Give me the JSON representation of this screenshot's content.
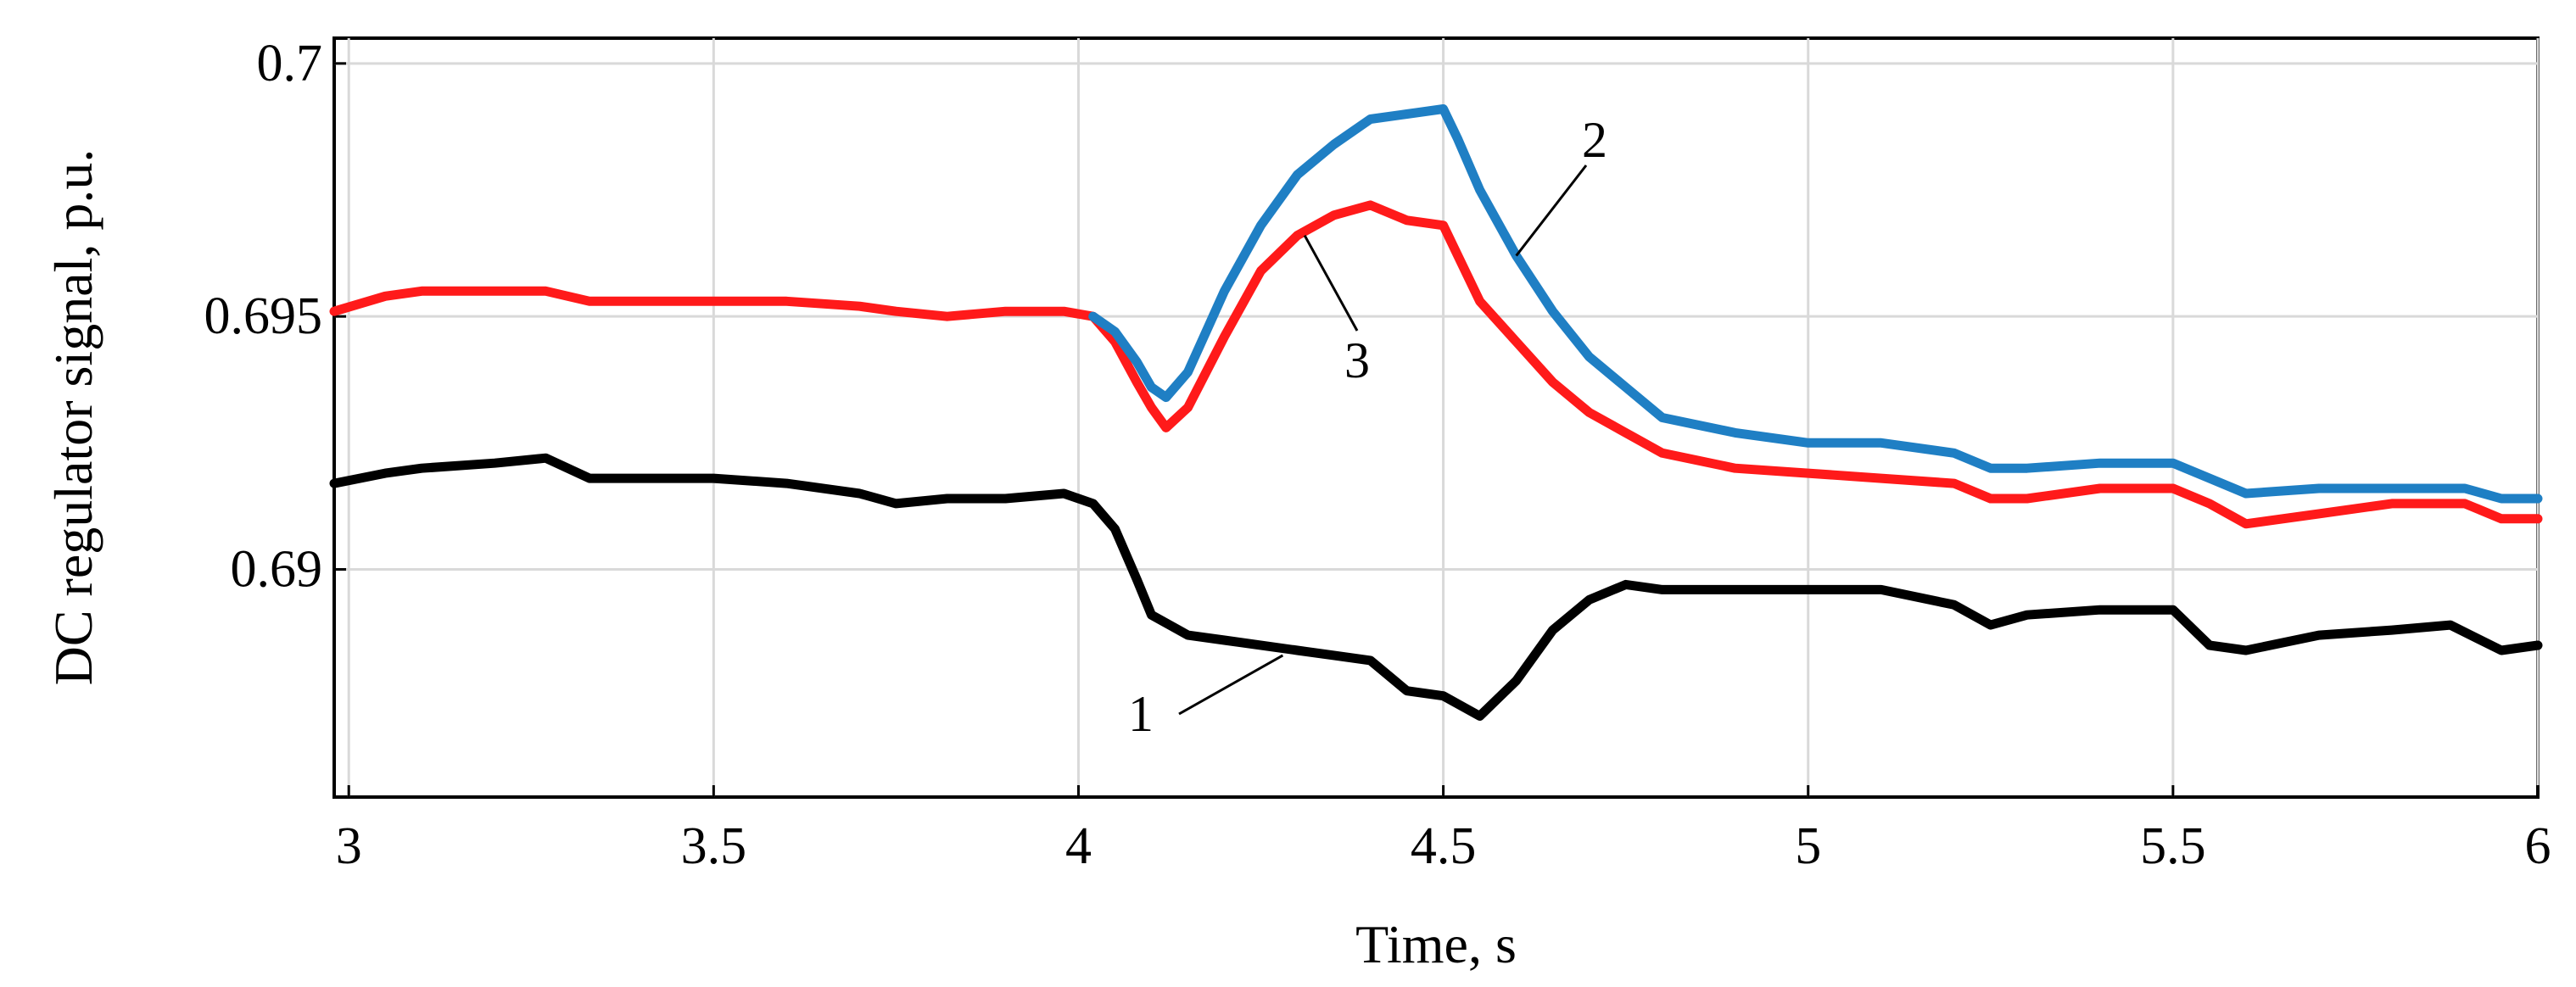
{
  "chart_data": {
    "type": "line",
    "xlabel": "Time, s",
    "ylabel": "DC regulator signal, p.u.",
    "xlim": [
      2.98,
      6.0
    ],
    "ylim": [
      0.6855,
      0.7005
    ],
    "xticks": [
      "3",
      "3.5",
      "4",
      "4.5",
      "5",
      "5.5",
      "6"
    ],
    "yticks": [
      "0.69",
      "0.695",
      "0.7"
    ],
    "grid": true,
    "colors": {
      "1": "#000000",
      "2": "#1f7fc4",
      "3": "#ff1a1a"
    },
    "series": [
      {
        "name": "1",
        "x": [
          2.98,
          3.05,
          3.1,
          3.2,
          3.27,
          3.33,
          3.4,
          3.5,
          3.6,
          3.7,
          3.75,
          3.82,
          3.9,
          3.98,
          4.02,
          4.05,
          4.08,
          4.1,
          4.15,
          4.2,
          4.3,
          4.35,
          4.4,
          4.45,
          4.5,
          4.55,
          4.6,
          4.65,
          4.7,
          4.75,
          4.8,
          4.9,
          5.0,
          5.1,
          5.2,
          5.25,
          5.3,
          5.4,
          5.5,
          5.55,
          5.6,
          5.7,
          5.8,
          5.88,
          5.95,
          6.0
        ],
        "y": [
          0.6917,
          0.6919,
          0.692,
          0.6921,
          0.6922,
          0.6918,
          0.6918,
          0.6918,
          0.6917,
          0.6915,
          0.6913,
          0.6914,
          0.6914,
          0.6915,
          0.6913,
          0.6908,
          0.6898,
          0.6891,
          0.6887,
          0.6886,
          0.6884,
          0.6883,
          0.6882,
          0.6876,
          0.6875,
          0.6871,
          0.6878,
          0.6888,
          0.6894,
          0.6897,
          0.6896,
          0.6896,
          0.6896,
          0.6896,
          0.6893,
          0.6889,
          0.6891,
          0.6892,
          0.6892,
          0.6885,
          0.6884,
          0.6887,
          0.6888,
          0.6889,
          0.6884,
          0.6885
        ]
      },
      {
        "name": "2",
        "x": [
          4.02,
          4.05,
          4.08,
          4.1,
          4.12,
          4.15,
          4.2,
          4.25,
          4.3,
          4.35,
          4.4,
          4.45,
          4.5,
          4.52,
          4.55,
          4.6,
          4.65,
          4.7,
          4.75,
          4.8,
          4.9,
          5.0,
          5.1,
          5.2,
          5.25,
          5.3,
          5.4,
          5.5,
          5.55,
          5.6,
          5.7,
          5.8,
          5.9,
          5.95,
          6.0
        ],
        "y": [
          0.695,
          0.6947,
          0.6941,
          0.6936,
          0.6934,
          0.6939,
          0.6955,
          0.6968,
          0.6978,
          0.6984,
          0.6989,
          0.699,
          0.6991,
          0.6985,
          0.6975,
          0.6962,
          0.6951,
          0.6942,
          0.6936,
          0.693,
          0.6927,
          0.6925,
          0.6925,
          0.6923,
          0.692,
          0.692,
          0.6921,
          0.6921,
          0.6918,
          0.6915,
          0.6916,
          0.6916,
          0.6916,
          0.6914,
          0.6914
        ]
      },
      {
        "name": "3",
        "x": [
          2.98,
          3.05,
          3.1,
          3.2,
          3.27,
          3.33,
          3.4,
          3.5,
          3.6,
          3.7,
          3.75,
          3.82,
          3.9,
          3.98,
          4.02,
          4.05,
          4.08,
          4.1,
          4.12,
          4.15,
          4.2,
          4.25,
          4.3,
          4.35,
          4.4,
          4.45,
          4.5,
          4.52,
          4.55,
          4.6,
          4.65,
          4.7,
          4.75,
          4.8,
          4.9,
          5.0,
          5.1,
          5.2,
          5.25,
          5.3,
          5.4,
          5.5,
          5.55,
          5.6,
          5.7,
          5.8,
          5.9,
          5.95,
          6.0
        ],
        "y": [
          0.6951,
          0.6954,
          0.6955,
          0.6955,
          0.6955,
          0.6953,
          0.6953,
          0.6953,
          0.6953,
          0.6952,
          0.6951,
          0.695,
          0.6951,
          0.6951,
          0.695,
          0.6945,
          0.6937,
          0.6932,
          0.6928,
          0.6932,
          0.6946,
          0.6959,
          0.6966,
          0.697,
          0.6972,
          0.6969,
          0.6968,
          0.6962,
          0.6953,
          0.6945,
          0.6937,
          0.6931,
          0.6927,
          0.6923,
          0.692,
          0.6919,
          0.6918,
          0.6917,
          0.6914,
          0.6914,
          0.6916,
          0.6916,
          0.6913,
          0.6909,
          0.6911,
          0.6913,
          0.6913,
          0.691,
          0.691
        ]
      }
    ],
    "annotations": [
      {
        "text": "1",
        "target_x": 4.28,
        "target_y": 0.6883
      },
      {
        "text": "2",
        "target_x": 4.6,
        "target_y": 0.6962
      },
      {
        "text": "3",
        "target_x": 4.31,
        "target_y": 0.6966
      }
    ]
  }
}
